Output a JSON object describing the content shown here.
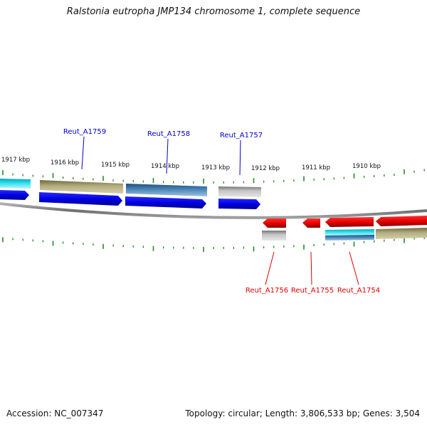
{
  "title": "Ralstonia eutropha JMP134 chromosome 1, complete sequence",
  "footer": {
    "accession": "Accession: NC_007347",
    "topology": "Topology: circular; Length: 3,806,533 bp; Genes: 3,504"
  },
  "colors": {
    "forward_label": "#0000cc",
    "reverse_label": "#dd0000",
    "tick": "#228b22",
    "backbone": "#8a8a8a",
    "forward_gene": "#0000ee",
    "reverse_gene": "#ee0000",
    "olive_feature": "#a8a274",
    "steelblue_feature": "#3d77a8",
    "gray_feature": "#b8b8b8",
    "cyan_feature": "#22c8d8"
  },
  "scale": {
    "kbp_labels": [
      "1917 kbp",
      "1916 kbp",
      "1915 kbp",
      "1914 kbp",
      "1913 kbp",
      "1912 kbp",
      "1911 kbp",
      "1910 kbp"
    ]
  },
  "genes": {
    "forward": [
      "Reut_A1759",
      "Reut_A1758",
      "Reut_A1757"
    ],
    "reverse": [
      "Reut_A1756",
      "Reut_A1755",
      "Reut_A1754"
    ]
  }
}
